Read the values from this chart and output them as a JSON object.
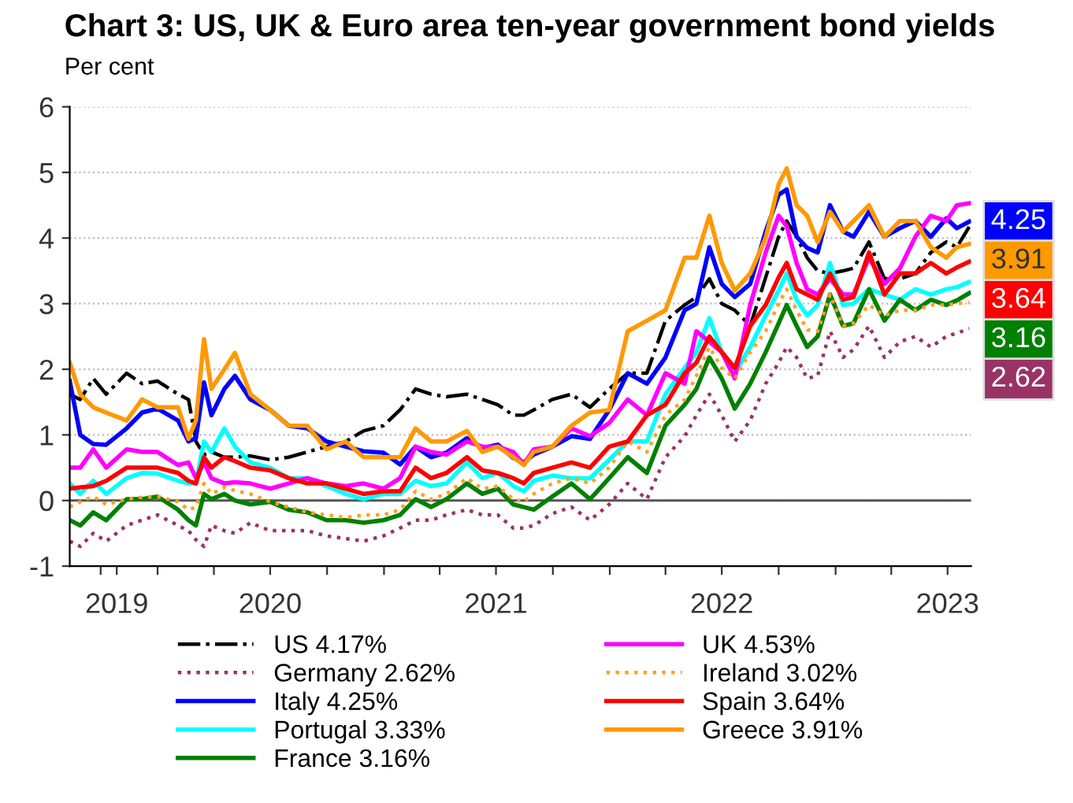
{
  "chart_data": {
    "type": "line",
    "title": "Chart 3: US, UK & Euro area ten-year government bond yields",
    "subtitle": "Per cent",
    "x": [
      "2019-08-12",
      "2019-08-29",
      "2019-09-19",
      "2019-10-10",
      "2019-11-12",
      "2019-12-07",
      "2020-01-01",
      "2020-02-03",
      "2020-02-20",
      "2020-03-03",
      "2020-03-16",
      "2020-03-28",
      "2020-04-18",
      "2020-05-05",
      "2020-05-30",
      "2020-07-01",
      "2020-07-31",
      "2020-08-30",
      "2020-09-30",
      "2020-10-31",
      "2020-11-29",
      "2020-12-31",
      "2021-01-27",
      "2021-02-21",
      "2021-03-18",
      "2021-04-12",
      "2021-05-15",
      "2021-06-09",
      "2021-07-04",
      "2021-07-29",
      "2021-08-15",
      "2021-08-31",
      "2021-09-30",
      "2021-10-31",
      "2021-11-30",
      "2021-12-31",
      "2022-01-30",
      "2022-03-02",
      "2022-04-01",
      "2022-05-02",
      "2022-05-21",
      "2022-06-11",
      "2022-07-01",
      "2022-07-22",
      "2022-08-16",
      "2022-09-10",
      "2022-10-01",
      "2022-10-14",
      "2022-10-30",
      "2022-11-16",
      "2022-12-03",
      "2022-12-23",
      "2023-01-13",
      "2023-01-30",
      "2023-02-24",
      "2023-03-21",
      "2023-04-15",
      "2023-05-10",
      "2023-06-04",
      "2023-06-29",
      "2023-07-16",
      "2023-08-05"
    ],
    "series": [
      {
        "name": "US 4.17%",
        "color": "#000000",
        "line_style": "dashdot",
        "values": [
          1.62,
          1.54,
          1.86,
          1.62,
          1.94,
          1.78,
          1.82,
          1.62,
          1.54,
          0.9,
          0.7,
          0.74,
          0.66,
          0.66,
          0.68,
          0.62,
          0.66,
          0.74,
          0.82,
          0.9,
          1.06,
          1.14,
          1.38,
          1.7,
          1.62,
          1.58,
          1.62,
          1.54,
          1.46,
          1.3,
          1.3,
          1.38,
          1.54,
          1.62,
          1.42,
          1.7,
          1.94,
          1.94,
          2.74,
          2.98,
          3.1,
          3.38,
          3.0,
          2.9,
          2.66,
          3.4,
          4.02,
          4.26,
          4.02,
          3.7,
          3.5,
          3.46,
          3.5,
          3.54,
          3.94,
          3.38,
          3.38,
          3.46,
          3.78,
          3.94,
          3.86,
          4.17
        ]
      },
      {
        "name": "Germany 2.62%",
        "color": "#993366",
        "line_style": "dotted",
        "values": [
          -0.62,
          -0.7,
          -0.5,
          -0.62,
          -0.38,
          -0.3,
          -0.22,
          -0.38,
          -0.46,
          -0.6,
          -0.7,
          -0.38,
          -0.46,
          -0.5,
          -0.34,
          -0.46,
          -0.46,
          -0.46,
          -0.54,
          -0.58,
          -0.62,
          -0.54,
          -0.42,
          -0.3,
          -0.3,
          -0.22,
          -0.14,
          -0.22,
          -0.22,
          -0.42,
          -0.42,
          -0.38,
          -0.2,
          -0.1,
          -0.3,
          -0.06,
          0.26,
          0.02,
          0.66,
          0.98,
          1.3,
          1.62,
          1.3,
          0.9,
          1.22,
          1.78,
          2.1,
          2.34,
          2.18,
          1.86,
          1.9,
          2.58,
          2.18,
          2.3,
          2.66,
          2.18,
          2.42,
          2.5,
          2.34,
          2.5,
          2.55,
          2.62
        ],
        "value_labels": [
          null,
          null,
          null,
          null,
          null,
          null,
          null,
          null,
          null,
          null,
          null,
          null,
          null,
          null,
          null,
          null,
          null,
          null,
          null,
          null,
          null,
          null,
          null,
          null,
          null,
          null,
          null,
          null,
          null,
          null,
          null,
          null,
          null,
          null,
          null,
          null,
          null,
          null,
          null,
          null,
          null,
          null,
          null,
          null,
          null,
          null,
          null,
          null,
          null,
          null,
          null,
          null,
          null,
          null,
          null,
          null,
          null,
          null,
          null,
          null,
          null,
          "2.62"
        ]
      },
      {
        "name": "Italy 4.25%",
        "color": "#0000ff",
        "line_style": "solid",
        "values": [
          1.82,
          1.0,
          0.86,
          0.85,
          1.1,
          1.34,
          1.4,
          1.22,
          0.9,
          0.95,
          1.8,
          1.3,
          1.7,
          1.9,
          1.54,
          1.38,
          1.14,
          1.1,
          0.9,
          0.82,
          0.75,
          0.73,
          0.55,
          0.82,
          0.66,
          0.73,
          0.95,
          0.8,
          0.85,
          0.65,
          0.58,
          0.7,
          0.82,
          0.98,
          0.94,
          1.38,
          1.94,
          1.78,
          2.18,
          2.9,
          3.0,
          3.86,
          3.3,
          3.1,
          3.3,
          4.1,
          4.66,
          4.74,
          4.02,
          3.85,
          3.78,
          4.5,
          4.1,
          4.02,
          4.4,
          4.02,
          4.15,
          4.26,
          4.02,
          4.3,
          4.15,
          4.25
        ],
        "value_labels": [
          null,
          null,
          null,
          null,
          null,
          null,
          null,
          null,
          null,
          null,
          null,
          null,
          null,
          null,
          null,
          null,
          null,
          null,
          null,
          null,
          null,
          null,
          null,
          null,
          null,
          null,
          null,
          null,
          null,
          null,
          null,
          null,
          null,
          null,
          null,
          null,
          null,
          null,
          null,
          null,
          null,
          null,
          null,
          null,
          null,
          null,
          null,
          null,
          null,
          null,
          null,
          null,
          null,
          null,
          null,
          null,
          null,
          null,
          null,
          null,
          null,
          "4.25"
        ]
      },
      {
        "name": "Portugal 3.33%",
        "color": "#00ffff",
        "line_style": "solid",
        "values": [
          0.26,
          0.1,
          0.3,
          0.1,
          0.34,
          0.42,
          0.41,
          0.3,
          0.26,
          0.26,
          0.9,
          0.74,
          1.1,
          0.82,
          0.58,
          0.5,
          0.34,
          0.34,
          0.22,
          0.1,
          0.02,
          0.1,
          0.1,
          0.3,
          0.22,
          0.26,
          0.58,
          0.34,
          0.42,
          0.22,
          0.14,
          0.3,
          0.38,
          0.34,
          0.34,
          0.62,
          0.9,
          0.9,
          1.62,
          2.02,
          2.26,
          2.78,
          2.26,
          1.94,
          2.34,
          2.82,
          3.2,
          3.46,
          3.06,
          2.82,
          2.98,
          3.62,
          2.98,
          3.0,
          3.22,
          3.14,
          3.06,
          3.22,
          3.14,
          3.22,
          3.25,
          3.33
        ]
      },
      {
        "name": "France 3.16%",
        "color": "#008000",
        "line_style": "solid",
        "values": [
          -0.3,
          -0.38,
          -0.18,
          -0.3,
          0.02,
          0.02,
          0.06,
          -0.14,
          -0.3,
          -0.38,
          0.1,
          0.02,
          0.1,
          0.0,
          -0.06,
          -0.02,
          -0.14,
          -0.18,
          -0.3,
          -0.3,
          -0.34,
          -0.3,
          -0.22,
          0.02,
          -0.1,
          0.02,
          0.26,
          0.1,
          0.18,
          -0.06,
          -0.1,
          -0.14,
          0.06,
          0.26,
          0.02,
          0.34,
          0.66,
          0.42,
          1.14,
          1.46,
          1.7,
          2.18,
          1.86,
          1.4,
          1.78,
          2.26,
          2.7,
          2.98,
          2.66,
          2.34,
          2.5,
          3.14,
          2.66,
          2.7,
          3.22,
          2.74,
          3.06,
          2.9,
          3.06,
          2.98,
          3.05,
          3.16
        ],
        "value_labels": [
          null,
          null,
          null,
          null,
          null,
          null,
          null,
          null,
          null,
          null,
          null,
          null,
          null,
          null,
          null,
          null,
          null,
          null,
          null,
          null,
          null,
          null,
          null,
          null,
          null,
          null,
          null,
          null,
          null,
          null,
          null,
          null,
          null,
          null,
          null,
          null,
          null,
          null,
          null,
          null,
          null,
          null,
          null,
          null,
          null,
          null,
          null,
          null,
          null,
          null,
          null,
          null,
          null,
          null,
          null,
          null,
          null,
          null,
          null,
          null,
          null,
          "3.16"
        ]
      },
      {
        "name": "UK 4.53%",
        "color": "#ff00ff",
        "line_style": "solid",
        "values": [
          0.5,
          0.5,
          0.78,
          0.5,
          0.78,
          0.74,
          0.74,
          0.54,
          0.58,
          0.34,
          0.58,
          0.34,
          0.26,
          0.28,
          0.26,
          0.18,
          0.26,
          0.34,
          0.26,
          0.22,
          0.26,
          0.18,
          0.34,
          0.82,
          0.74,
          0.7,
          0.9,
          0.82,
          0.82,
          0.74,
          0.55,
          0.78,
          0.82,
          1.1,
          0.98,
          1.18,
          1.54,
          1.3,
          1.94,
          1.78,
          2.58,
          2.42,
          2.26,
          1.86,
          2.98,
          3.78,
          4.34,
          4.18,
          3.62,
          3.22,
          3.14,
          3.38,
          3.14,
          3.14,
          3.7,
          3.3,
          3.54,
          4.02,
          4.34,
          4.26,
          4.5,
          4.53
        ]
      },
      {
        "name": "Ireland 3.02%",
        "color": "#ffa020",
        "line_style": "dotted",
        "values": [
          -0.1,
          -0.02,
          0.06,
          -0.06,
          0.02,
          0.05,
          0.06,
          -0.02,
          -0.14,
          -0.1,
          0.26,
          0.1,
          0.2,
          0.15,
          0.1,
          -0.02,
          -0.1,
          -0.18,
          -0.22,
          -0.26,
          -0.22,
          -0.22,
          -0.14,
          0.14,
          0.02,
          0.1,
          0.34,
          0.18,
          0.22,
          0.02,
          -0.02,
          0.1,
          0.26,
          0.34,
          0.26,
          0.5,
          0.9,
          0.74,
          1.3,
          1.54,
          1.9,
          2.34,
          2.02,
          1.86,
          2.26,
          2.58,
          3.0,
          3.22,
          2.9,
          2.6,
          2.58,
          3.14,
          2.66,
          2.7,
          2.98,
          2.82,
          2.9,
          2.9,
          2.98,
          2.98,
          3.0,
          3.02
        ]
      },
      {
        "name": "Spain 3.64%",
        "color": "#ff0000",
        "line_style": "solid",
        "values": [
          0.18,
          0.2,
          0.22,
          0.3,
          0.5,
          0.5,
          0.5,
          0.42,
          0.3,
          0.26,
          0.66,
          0.5,
          0.66,
          0.6,
          0.5,
          0.46,
          0.34,
          0.26,
          0.26,
          0.18,
          0.1,
          0.14,
          0.14,
          0.5,
          0.34,
          0.42,
          0.66,
          0.46,
          0.42,
          0.34,
          0.26,
          0.42,
          0.5,
          0.58,
          0.5,
          0.82,
          0.9,
          1.3,
          1.46,
          1.94,
          2.1,
          2.5,
          2.26,
          2.02,
          2.66,
          2.98,
          3.4,
          3.62,
          3.22,
          3.14,
          3.06,
          3.46,
          3.06,
          3.1,
          3.78,
          3.14,
          3.46,
          3.46,
          3.62,
          3.46,
          3.55,
          3.64
        ],
        "value_labels": [
          null,
          null,
          null,
          null,
          null,
          null,
          null,
          null,
          null,
          null,
          null,
          null,
          null,
          null,
          null,
          null,
          null,
          null,
          null,
          null,
          null,
          null,
          null,
          null,
          null,
          null,
          null,
          null,
          null,
          null,
          null,
          null,
          null,
          null,
          null,
          null,
          null,
          null,
          null,
          null,
          null,
          null,
          null,
          null,
          null,
          null,
          null,
          null,
          null,
          null,
          null,
          null,
          null,
          null,
          null,
          null,
          null,
          null,
          null,
          null,
          null,
          "3.64"
        ]
      },
      {
        "name": "Greece 3.91%",
        "color": "#ff9900",
        "line_style": "solid",
        "values": [
          2.1,
          1.62,
          1.42,
          1.34,
          1.22,
          1.54,
          1.42,
          1.42,
          0.94,
          1.22,
          2.46,
          1.7,
          2.0,
          2.25,
          1.62,
          1.38,
          1.14,
          1.14,
          0.78,
          0.9,
          0.66,
          0.66,
          0.66,
          1.1,
          0.9,
          0.9,
          1.06,
          0.74,
          0.82,
          0.66,
          0.54,
          0.74,
          0.82,
          1.14,
          1.34,
          1.38,
          2.58,
          2.74,
          2.9,
          3.7,
          3.7,
          4.34,
          3.62,
          3.2,
          3.46,
          4.0,
          4.82,
          5.06,
          4.5,
          4.34,
          3.94,
          4.4,
          4.1,
          4.26,
          4.5,
          4.02,
          4.26,
          4.26,
          3.86,
          3.7,
          3.86,
          3.91
        ],
        "value_labels": [
          null,
          null,
          null,
          null,
          null,
          null,
          null,
          null,
          null,
          null,
          null,
          null,
          null,
          null,
          null,
          null,
          null,
          null,
          null,
          null,
          null,
          null,
          null,
          null,
          null,
          null,
          null,
          null,
          null,
          null,
          null,
          null,
          null,
          null,
          null,
          null,
          null,
          null,
          null,
          null,
          null,
          null,
          null,
          null,
          null,
          null,
          null,
          null,
          null,
          null,
          null,
          null,
          null,
          null,
          null,
          null,
          null,
          null,
          null,
          null,
          null,
          "3.91"
        ]
      }
    ],
    "xlim": [
      "2019-08-12",
      "2023-08-08"
    ],
    "xticks": [
      {
        "value": "2019-10-01",
        "label": null
      },
      {
        "value": "2019-10-27",
        "label": "2019"
      },
      {
        "value": "2020-01-01",
        "label": null
      },
      {
        "value": "2020-04-01",
        "label": null
      },
      {
        "value": "2020-07-01",
        "label": "2020"
      },
      {
        "value": "2020-10-01",
        "label": null
      },
      {
        "value": "2021-01-01",
        "label": null
      },
      {
        "value": "2021-04-01",
        "label": null
      },
      {
        "value": "2021-07-01",
        "label": "2021"
      },
      {
        "value": "2021-10-01",
        "label": null
      },
      {
        "value": "2022-01-01",
        "label": null
      },
      {
        "value": "2022-04-01",
        "label": null
      },
      {
        "value": "2022-07-01",
        "label": "2022"
      },
      {
        "value": "2022-10-01",
        "label": null
      },
      {
        "value": "2023-01-01",
        "label": null
      },
      {
        "value": "2023-04-01",
        "label": null
      },
      {
        "value": "2023-07-01",
        "label": "2023"
      }
    ],
    "ylim": [
      -1,
      6
    ],
    "yticks": [
      -1,
      0,
      1,
      2,
      3,
      4,
      5,
      6
    ],
    "grid": "y",
    "ref_lines": [
      {
        "axis": "y",
        "value": 0,
        "color": "#555555",
        "line_style": "solid"
      }
    ],
    "legend": "bottom"
  }
}
